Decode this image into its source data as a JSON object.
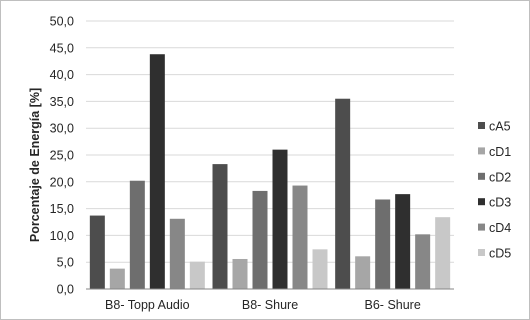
{
  "chart_data": {
    "type": "bar",
    "title": "",
    "xlabel": "",
    "ylabel": "Porcentaje de Energía [%]",
    "ylim": [
      0,
      50
    ],
    "y_ticks": [
      "0,0",
      "5,0",
      "10,0",
      "15,0",
      "20,0",
      "25,0",
      "30,0",
      "35,0",
      "40,0",
      "45,0",
      "50,0"
    ],
    "grid": true,
    "legend_position": "right",
    "categories": [
      "B8- Topp Audio",
      "B8- Shure",
      "B6- Shure"
    ],
    "series": [
      {
        "name": "cA5",
        "color": "#4d4d4d",
        "values": [
          13.7,
          23.3,
          35.5
        ]
      },
      {
        "name": "cD1",
        "color": "#a6a6a6",
        "values": [
          3.8,
          5.6,
          6.1
        ]
      },
      {
        "name": "cD2",
        "color": "#6e6e6e",
        "values": [
          20.2,
          18.3,
          16.7
        ]
      },
      {
        "name": "cD3",
        "color": "#2f2f2f",
        "values": [
          43.8,
          26.0,
          17.7
        ]
      },
      {
        "name": "cD4",
        "color": "#878787",
        "values": [
          13.1,
          19.3,
          10.2
        ]
      },
      {
        "name": "cD5",
        "color": "#c8c8c8",
        "values": [
          5.1,
          7.4,
          13.4
        ]
      }
    ]
  }
}
